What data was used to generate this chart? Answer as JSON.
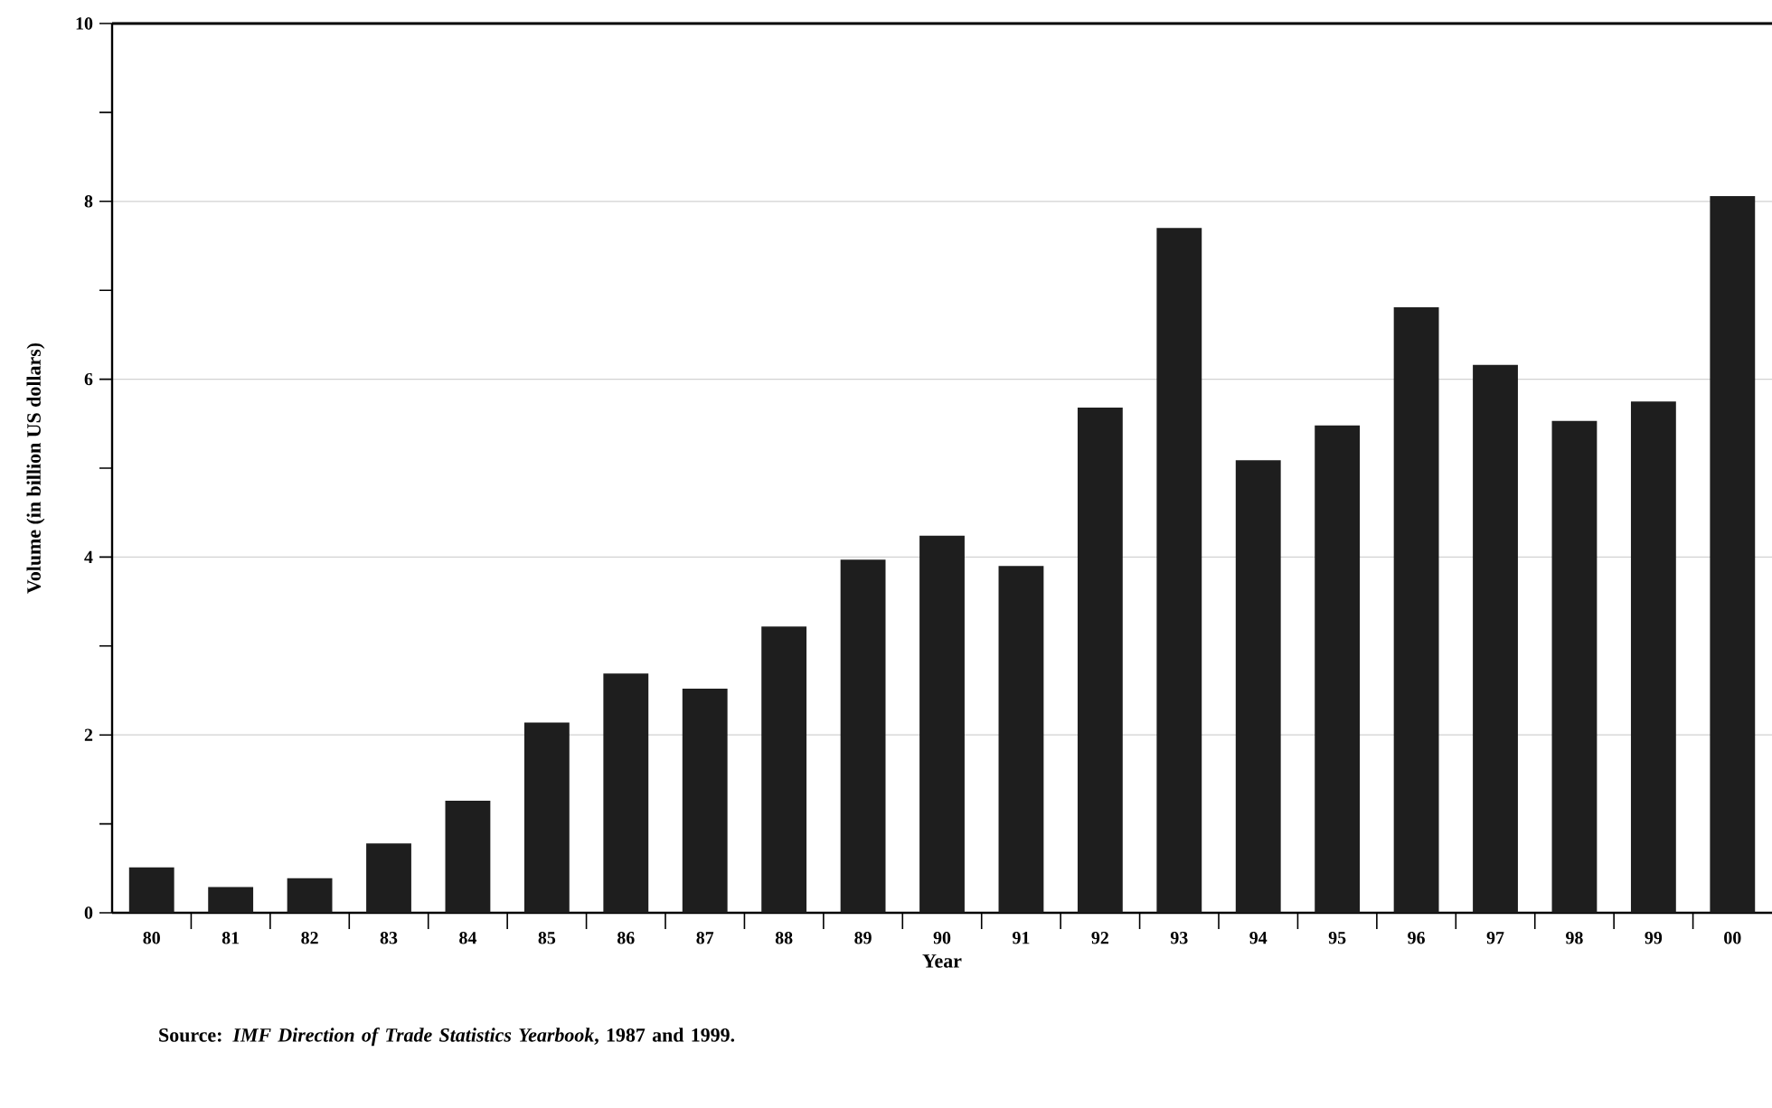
{
  "chart_data": {
    "type": "bar",
    "categories": [
      "80",
      "81",
      "82",
      "83",
      "84",
      "85",
      "86",
      "87",
      "88",
      "89",
      "90",
      "91",
      "92",
      "93",
      "94",
      "95",
      "96",
      "97",
      "98",
      "99",
      "00"
    ],
    "values": [
      0.51,
      0.29,
      0.39,
      0.78,
      1.26,
      2.14,
      2.69,
      2.52,
      3.22,
      3.97,
      4.24,
      3.9,
      5.68,
      7.7,
      5.09,
      5.48,
      6.81,
      6.16,
      5.53,
      5.75,
      8.06
    ],
    "color": "#1e1e1e",
    "xlabel": "Year",
    "ylabel": "Volume (in billion US dollars)",
    "ylim": [
      0,
      10
    ],
    "yticks": [
      0,
      {
        "value": 1,
        "label": null
      },
      2,
      {
        "value": 3,
        "label": null
      },
      4,
      {
        "value": 5,
        "label": null
      },
      6,
      {
        "value": 7,
        "label": null
      },
      8,
      {
        "value": 9,
        "label": null
      },
      10
    ],
    "grid": "y",
    "annotations": [
      "Source: *IMF Direction of Trade Statistics Yearbook*, 1987 and 1999."
    ]
  }
}
